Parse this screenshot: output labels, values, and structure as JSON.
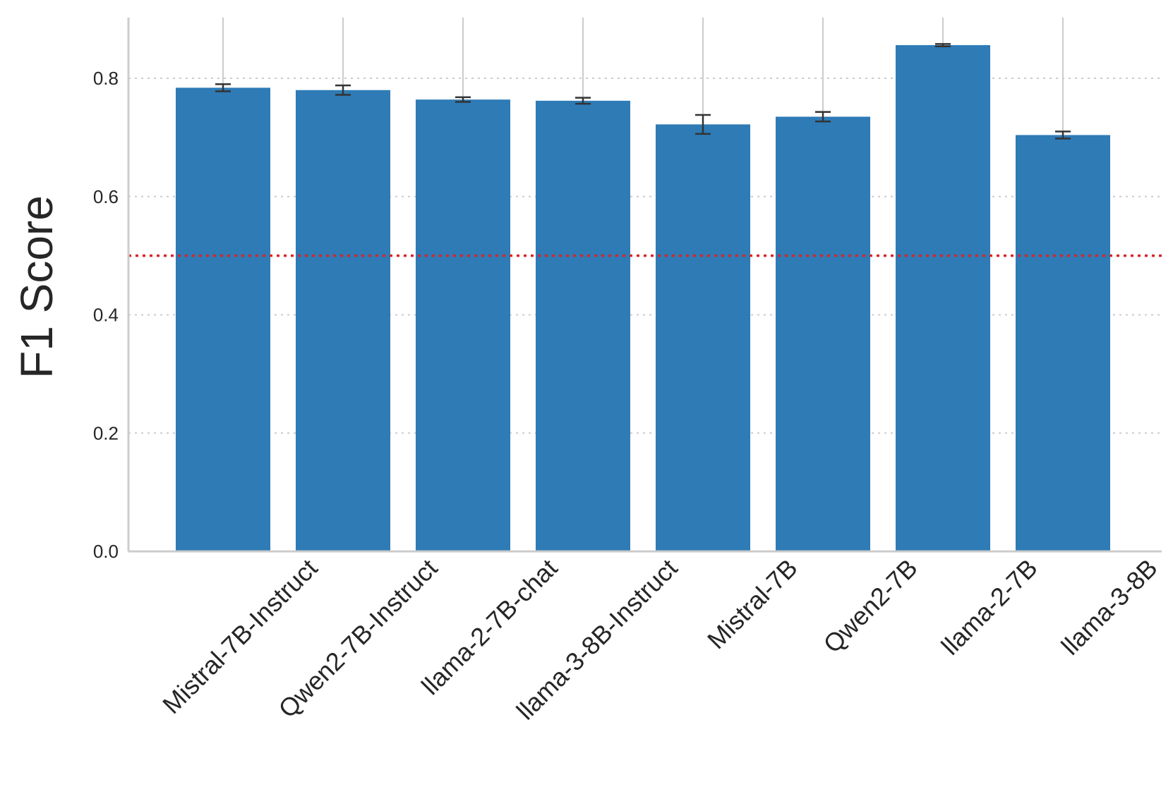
{
  "chart_data": {
    "type": "bar",
    "categories": [
      "Mistral-7B-Instruct",
      "Qwen2-7B-Instruct",
      "llama-2-7B-chat",
      "llama-3-8B-Instruct",
      "Mistral-7B",
      "Qwen2-7B",
      "llama-2-7B",
      "llama-3-8B"
    ],
    "values": [
      0.784,
      0.78,
      0.764,
      0.762,
      0.722,
      0.735,
      0.856,
      0.704
    ],
    "error": [
      0.006,
      0.008,
      0.004,
      0.005,
      0.016,
      0.008,
      0.002,
      0.006
    ],
    "ylabel": "F1 Score",
    "xlabel": "",
    "ylim": [
      0,
      0.9
    ],
    "yticks": [
      "0.0",
      "0.2",
      "0.4",
      "0.6",
      "0.8"
    ],
    "ytick_values": [
      0,
      0.2,
      0.4,
      0.6,
      0.8
    ],
    "reference_line": 0.5,
    "grid": "y-dotted",
    "colors": {
      "bar": "#2e7bb6",
      "error_bar": "#333333",
      "reference_line": "#d62728",
      "grid": "#cccccc",
      "axis": "#cccccc"
    }
  }
}
